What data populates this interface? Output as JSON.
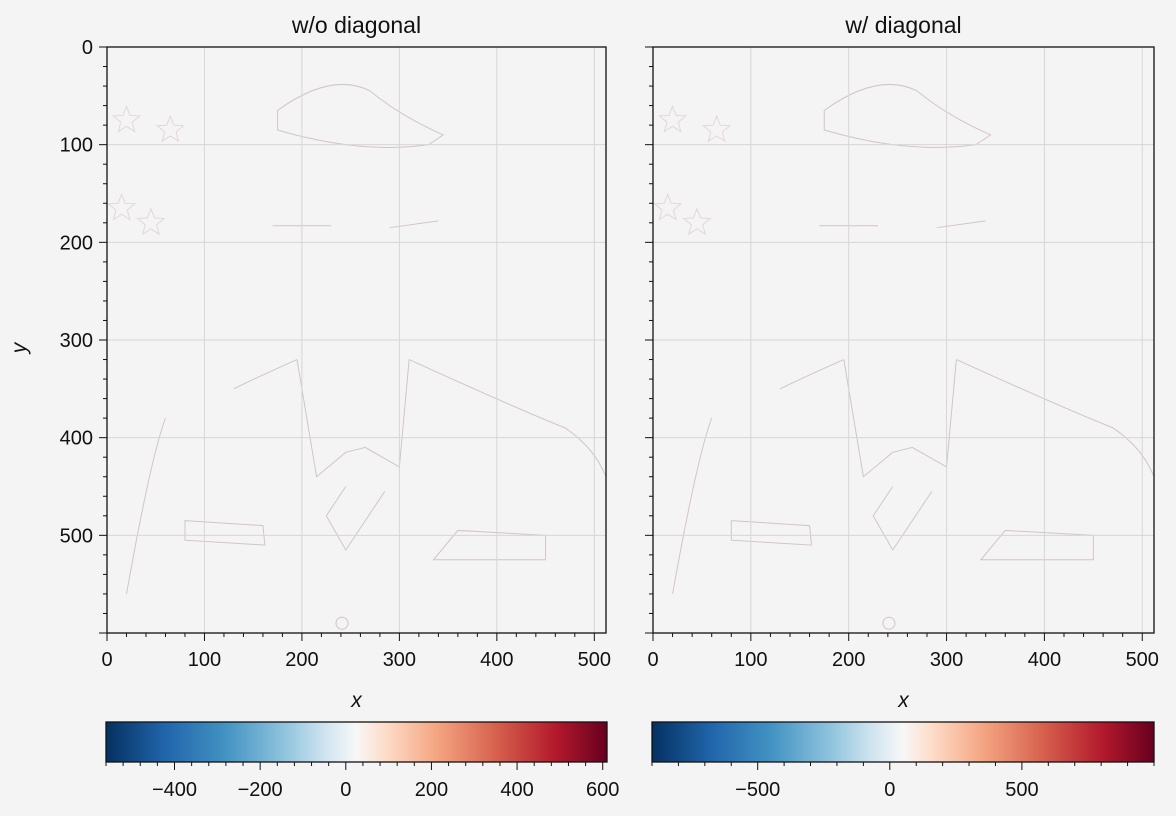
{
  "figure": {
    "background": "#f4f4f4",
    "panels": [
      {
        "title": "w/o diagonal",
        "xlabel": "x",
        "ylabel": "y"
      },
      {
        "title": "w/ diagonal",
        "xlabel": "x",
        "ylabel": ""
      }
    ]
  },
  "chart_data": [
    {
      "type": "heatmap",
      "title": "w/o diagonal",
      "xlabel": "x",
      "ylabel": "y",
      "xlim": [
        0,
        512
      ],
      "ylim": [
        600,
        0
      ],
      "xticks": [
        0,
        100,
        200,
        300,
        400,
        500
      ],
      "yticks": [
        0,
        100,
        200,
        300,
        400,
        500
      ],
      "grid": true,
      "colormap": "RdBu_r",
      "colorbar": {
        "orientation": "horizontal",
        "position": "bottom",
        "range": [
          -560,
          610
        ],
        "ticks": [
          -400,
          -200,
          0,
          200,
          400,
          600
        ],
        "tick_labels": [
          "−400",
          "−200",
          "0",
          "200",
          "400",
          "600"
        ]
      },
      "content": "edge-filtered portrait of a uniformed person (near-zero background with sparse positive/negative edge responses)"
    },
    {
      "type": "heatmap",
      "title": "w/ diagonal",
      "xlabel": "x",
      "ylabel": "",
      "xlim": [
        0,
        512
      ],
      "ylim": [
        600,
        0
      ],
      "xticks": [
        0,
        100,
        200,
        300,
        400,
        500
      ],
      "yticks": [
        0,
        100,
        200,
        300,
        400,
        500
      ],
      "grid": true,
      "colormap": "RdBu_r",
      "colorbar": {
        "orientation": "horizontal",
        "position": "bottom",
        "range": [
          -900,
          1000
        ],
        "ticks": [
          -500,
          0,
          500
        ],
        "tick_labels": [
          "−500",
          "0",
          "500"
        ]
      },
      "content": "edge-filtered portrait of a uniformed person (near-zero background with sparse positive/negative edge responses)"
    }
  ]
}
